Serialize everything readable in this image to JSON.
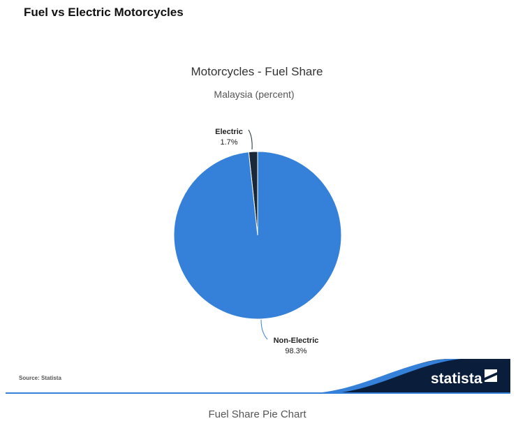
{
  "page": {
    "heading": "Fuel vs Electric Motorcycles",
    "caption": "Fuel Share Pie Chart"
  },
  "chart_data": {
    "type": "pie",
    "title": "Motorcycles - Fuel Share",
    "subtitle": "Malaysia (percent)",
    "slices": [
      {
        "label": "Electric",
        "value": 1.7,
        "value_label": "1.7%",
        "color": "#1b2838"
      },
      {
        "label": "Non-Electric",
        "value": 98.3,
        "value_label": "98.3%",
        "color": "#3580d9"
      }
    ],
    "legend": "none"
  },
  "footer": {
    "source": "Source: Statista",
    "brand": "statista",
    "brand_color": "#0a1e3c",
    "accent_color": "#3580d9"
  }
}
